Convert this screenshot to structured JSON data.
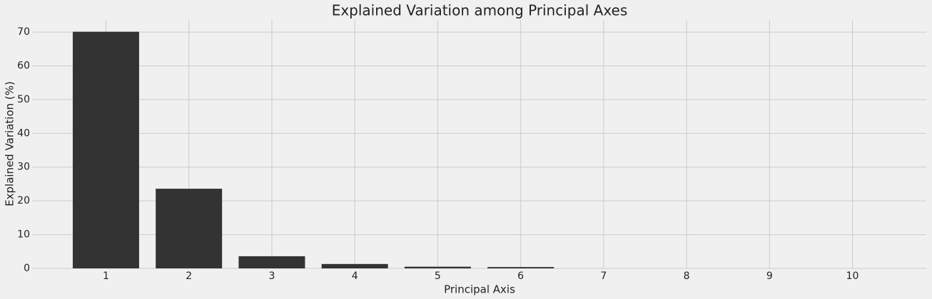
{
  "chart_data": {
    "type": "bar",
    "title": "Explained Variation among Principal Axes",
    "x_label": "Principal Axis",
    "y_label": "Explained Variation (%)",
    "x": [
      1,
      2,
      3,
      4,
      5,
      6,
      7,
      8,
      9,
      10
    ],
    "values": [
      70.1,
      23.6,
      3.6,
      1.3,
      0.5,
      0.4,
      0,
      0,
      0,
      0
    ],
    "color": "#333333",
    "xlim": [
      0.11,
      10.89
    ],
    "xticks": [
      1,
      2,
      3,
      4,
      5,
      6,
      7,
      8,
      9,
      10
    ],
    "ylim": [
      0,
      73.6
    ],
    "yticks": [
      0,
      10,
      20,
      30,
      40,
      50,
      60,
      70
    ],
    "grid": true
  }
}
